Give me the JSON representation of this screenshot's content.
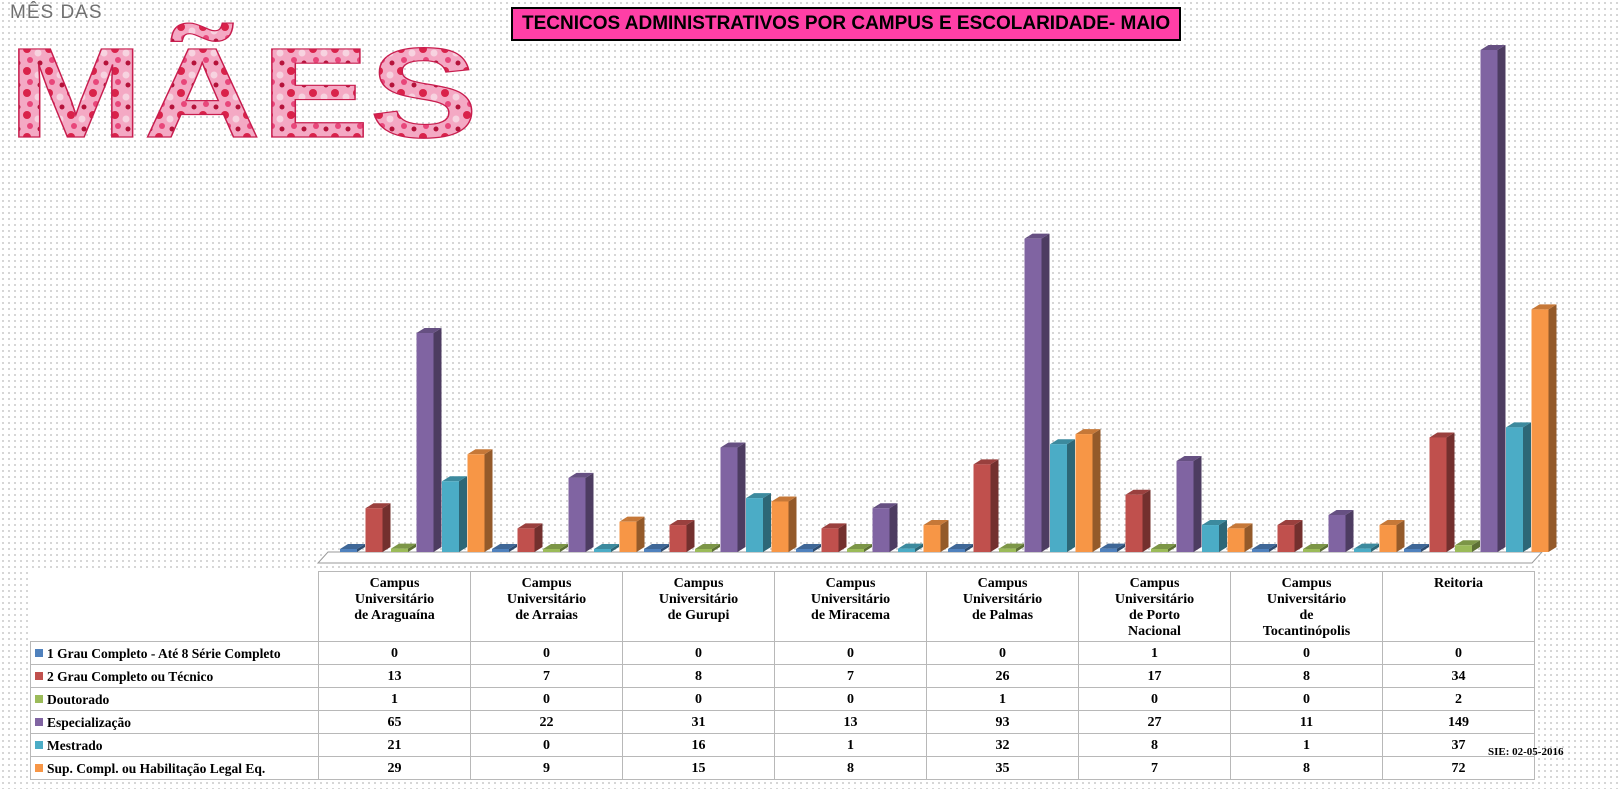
{
  "chart_data": {
    "type": "bar",
    "title": "TECNICOS ADMINISTRATIVOS POR CAMPUS E ESCOLARIDADE- MAIO",
    "categories": [
      "Campus\nUniversitário\nde Araguaína",
      "Campus\nUniversitário\nde Arraias",
      "Campus\nUniversitário\nde Gurupi",
      "Campus\nUniversitário\nde Miracema",
      "Campus\nUniversitário\nde Palmas",
      "Campus\nUniversitário\nde Porto\nNacional",
      "Campus\nUniversitário\nde\nTocantinópolis",
      "Reitoria"
    ],
    "series": [
      {
        "name": "1 Grau Completo - Até 8 Série Completo",
        "color": "#4f81bd",
        "values": [
          0,
          0,
          0,
          0,
          0,
          1,
          0,
          0
        ]
      },
      {
        "name": "2 Grau Completo ou Técnico",
        "color": "#c0504d",
        "values": [
          13,
          7,
          8,
          7,
          26,
          17,
          8,
          34
        ]
      },
      {
        "name": "Doutorado",
        "color": "#9bbb59",
        "values": [
          1,
          0,
          0,
          0,
          1,
          0,
          0,
          2
        ]
      },
      {
        "name": "Especialização",
        "color": "#8064a2",
        "values": [
          65,
          22,
          31,
          13,
          93,
          27,
          11,
          149
        ]
      },
      {
        "name": "Mestrado",
        "color": "#4bacc6",
        "values": [
          21,
          0,
          16,
          1,
          32,
          8,
          1,
          37
        ]
      },
      {
        "name": "Sup. Compl. ou Habilitação Legal Eq.",
        "color": "#f79646",
        "values": [
          29,
          9,
          15,
          8,
          35,
          7,
          8,
          72
        ]
      }
    ],
    "ylim": [
      0,
      149
    ],
    "grid": false,
    "legend": "data-table"
  },
  "logo": {
    "line1": "MÊS DAS",
    "line2": "MÃES"
  },
  "source": "SIE: 02-05-2016"
}
